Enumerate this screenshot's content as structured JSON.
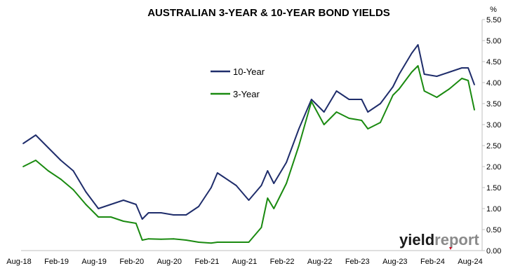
{
  "chart_data": {
    "type": "line",
    "title": "AUSTRALIAN 3-YEAR & 10-YEAR BOND YIELDS",
    "y_unit": "%",
    "ylim": [
      0,
      5.5
    ],
    "y_ticks": [
      "0.00",
      "0.50",
      "1.00",
      "1.50",
      "2.00",
      "2.50",
      "3.00",
      "3.50",
      "4.00",
      "4.50",
      "5.00",
      "5.50"
    ],
    "x_ticks": [
      "Aug-18",
      "Feb-19",
      "Aug-19",
      "Feb-20",
      "Aug-20",
      "Feb-21",
      "Aug-21",
      "Feb-22",
      "Aug-22",
      "Feb-23",
      "Aug-23",
      "Feb-24",
      "Aug-24"
    ],
    "x": [
      "Aug-18",
      "Oct-18",
      "Dec-18",
      "Feb-19",
      "Apr-19",
      "Jun-19",
      "Aug-19",
      "Oct-19",
      "Dec-19",
      "Feb-20",
      "Mar-20",
      "Apr-20",
      "Jun-20",
      "Aug-20",
      "Oct-20",
      "Dec-20",
      "Feb-21",
      "Mar-21",
      "Apr-21",
      "Jun-21",
      "Aug-21",
      "Oct-21",
      "Nov-21",
      "Dec-21",
      "Feb-22",
      "Apr-22",
      "Jun-22",
      "Aug-22",
      "Oct-22",
      "Dec-22",
      "Feb-23",
      "Mar-23",
      "May-23",
      "Jul-23",
      "Aug-23",
      "Oct-23",
      "Nov-23",
      "Dec-23",
      "Feb-24",
      "Apr-24",
      "Jun-24",
      "Jul-24",
      "Aug-24"
    ],
    "grid": false,
    "legend": "center",
    "series": [
      {
        "name": "10-Year",
        "color": "#1f2d6b",
        "values": [
          2.55,
          2.75,
          2.45,
          2.15,
          1.9,
          1.4,
          1.0,
          1.1,
          1.2,
          1.1,
          0.75,
          0.9,
          0.9,
          0.85,
          0.85,
          1.05,
          1.5,
          1.85,
          1.75,
          1.55,
          1.2,
          1.55,
          1.9,
          1.6,
          2.1,
          2.9,
          3.6,
          3.3,
          3.8,
          3.6,
          3.6,
          3.3,
          3.5,
          3.9,
          4.2,
          4.7,
          4.9,
          4.2,
          4.15,
          4.25,
          4.35,
          4.35,
          3.95
        ]
      },
      {
        "name": "3-Year",
        "color": "#1a8a10",
        "values": [
          2.0,
          2.15,
          1.9,
          1.7,
          1.45,
          1.1,
          0.8,
          0.8,
          0.7,
          0.65,
          0.25,
          0.28,
          0.27,
          0.28,
          0.25,
          0.2,
          0.18,
          0.2,
          0.2,
          0.2,
          0.2,
          0.55,
          1.25,
          1.0,
          1.6,
          2.5,
          3.55,
          3.0,
          3.3,
          3.15,
          3.1,
          2.9,
          3.05,
          3.7,
          3.85,
          4.25,
          4.4,
          3.8,
          3.65,
          3.85,
          4.1,
          4.05,
          3.35
        ]
      }
    ]
  },
  "legend": {
    "ten_year": "10-Year",
    "three_year": "3-Year"
  },
  "logo": {
    "text_dark": "yield",
    "text_light": "report",
    "color_dark": "#1a1a1a",
    "color_light": "#8a8a8a",
    "accent": "#d0021b"
  }
}
